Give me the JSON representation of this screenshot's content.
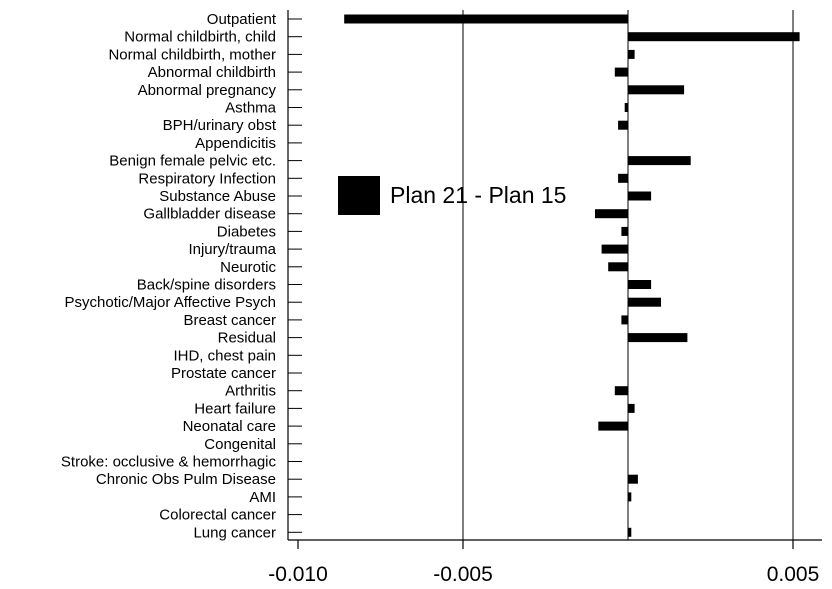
{
  "chart_data": {
    "type": "bar",
    "orientation": "horizontal",
    "categories": [
      "Outpatient",
      "Normal childbirth, child",
      "Normal childbirth, mother",
      "Abnormal childbirth",
      "Abnormal pregnancy",
      "Asthma",
      "BPH/urinary obst",
      "Appendicitis",
      "Benign female pelvic etc.",
      "Respiratory Infection",
      "Substance Abuse",
      "Gallbladder disease",
      "Diabetes",
      "Injury/trauma",
      "Neurotic",
      "Back/spine disorders",
      "Psychotic/Major Affective Psych",
      "Breast cancer",
      "Residual",
      "IHD, chest pain",
      "Prostate cancer",
      "Arthritis",
      "Heart failure",
      "Neonatal care",
      "Congenital",
      "Stroke: occlusive & hemorrhagic",
      "Chronic Obs Pulm Disease",
      "AMI",
      "Colorectal cancer",
      "Lung cancer"
    ],
    "series": [
      {
        "name": "Plan 21 - Plan 15",
        "color": "#000000",
        "values": [
          -0.0086,
          0.0052,
          0.0002,
          -0.0004,
          0.0017,
          -0.0001,
          -0.0003,
          0.0,
          0.0019,
          -0.0003,
          0.0007,
          -0.001,
          -0.0002,
          -0.0008,
          -0.0006,
          0.0007,
          0.001,
          -0.0002,
          0.0018,
          0.0,
          0.0,
          -0.0004,
          0.0002,
          -0.0009,
          0.0,
          0.0,
          0.0003,
          0.0001,
          0.0,
          0.0001
        ]
      }
    ],
    "x_ticks": [
      "-0.010",
      "-0.005",
      "0.005"
    ],
    "x_tick_values": [
      -0.01,
      -0.005,
      0.005
    ],
    "xlim": [
      -0.0105,
      0.0055
    ],
    "xlabel": "",
    "ylabel": "",
    "title": "",
    "grid": "vertical lines at -0.005, 0 and 0.005",
    "legend": "left-center, inside plot"
  }
}
